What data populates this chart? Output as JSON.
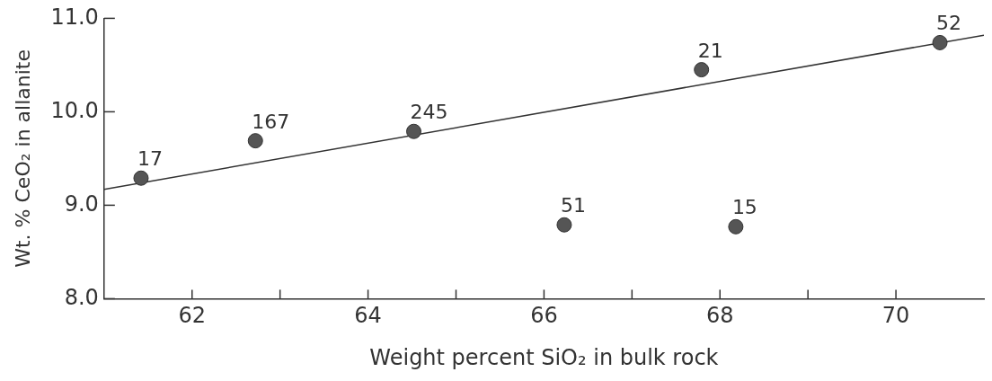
{
  "chart_data": {
    "type": "scatter",
    "xlabel": "Weight percent SiO₂ in bulk rock",
    "ylabel": "Wt. % CeO₂ in allanite",
    "series": [
      {
        "type": "scatter",
        "color": "#555555",
        "marker": "circle",
        "x": [
          61.42,
          62.72,
          64.52,
          66.23,
          67.79,
          68.18,
          70.5
        ],
        "values": [
          9.29,
          9.69,
          9.79,
          8.79,
          10.45,
          8.77,
          10.74
        ]
      },
      {
        "type": "line",
        "color": "#333333",
        "marker": "none",
        "line_style": "solid",
        "x": [
          61,
          71
        ],
        "values": [
          9.17,
          10.82
        ]
      }
    ],
    "annotations": [
      {
        "text": "17",
        "x": 61.42,
        "y": 9.29
      },
      {
        "text": "167",
        "x": 62.72,
        "y": 9.69
      },
      {
        "text": "245",
        "x": 64.52,
        "y": 9.79
      },
      {
        "text": "51",
        "x": 66.23,
        "y": 8.79
      },
      {
        "text": "21",
        "x": 67.79,
        "y": 10.45
      },
      {
        "text": "15",
        "x": 68.18,
        "y": 8.77
      },
      {
        "text": "52",
        "x": 70.5,
        "y": 10.74
      }
    ],
    "xlim": [
      61,
      71
    ],
    "ylim": [
      8,
      11
    ],
    "xticks": [
      62,
      {
        "value": 63,
        "label": null
      },
      64,
      {
        "value": 65,
        "label": null
      },
      66,
      {
        "value": 67,
        "label": null
      },
      68,
      {
        "value": 69,
        "label": null
      },
      70
    ],
    "yticks": [
      {
        "value": 8,
        "label": "8.0"
      },
      {
        "value": 9,
        "label": "9.0"
      },
      {
        "value": 10,
        "label": "10.0"
      },
      {
        "value": 11,
        "label": "11.0"
      }
    ],
    "grid": false,
    "legend": false
  }
}
